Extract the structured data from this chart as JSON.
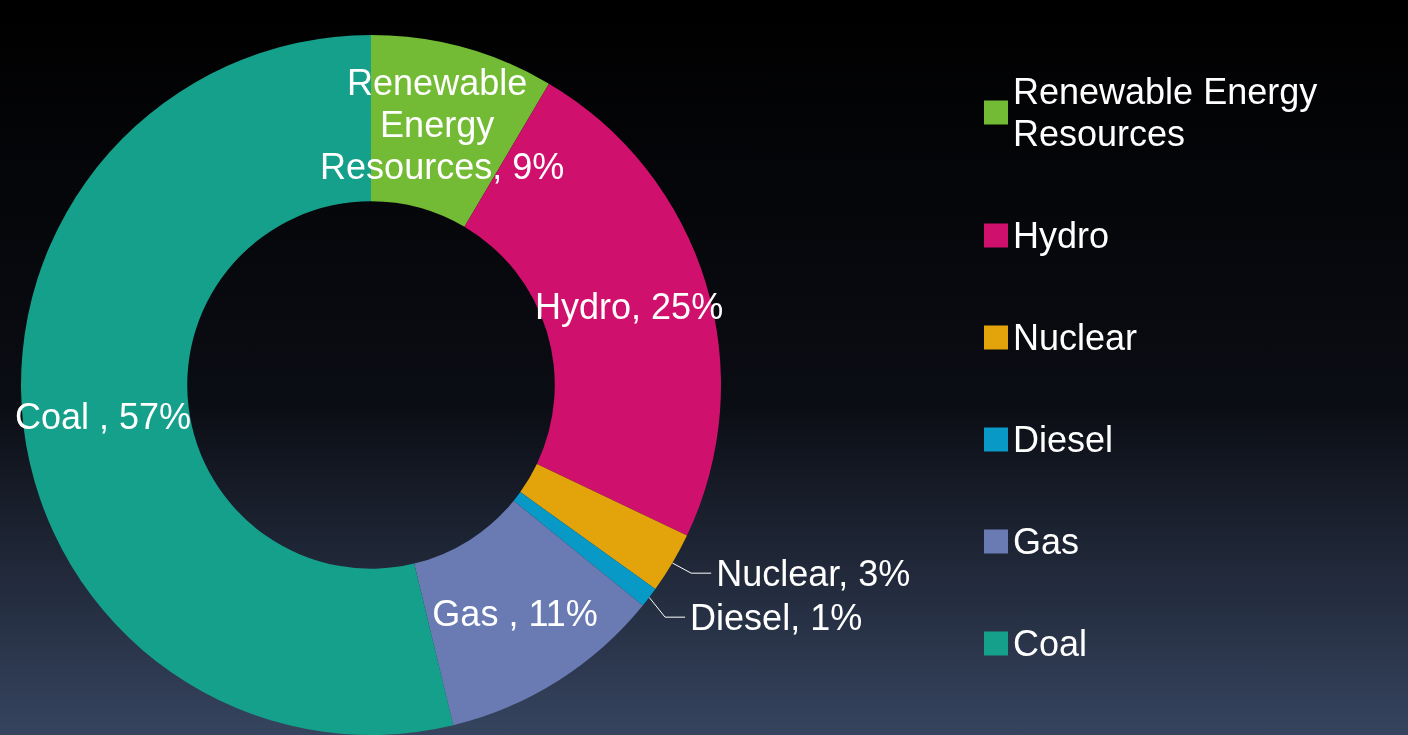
{
  "chart_data": {
    "type": "donut",
    "categories": [
      "Renewable Energy Resources",
      "Hydro",
      "Nuclear",
      "Diesel",
      "Gas",
      "Coal"
    ],
    "values": [
      9,
      25,
      3,
      1,
      11,
      57
    ],
    "colors": [
      "#74bb35",
      "#d0106d",
      "#e3a30a",
      "#0899c7",
      "#6a7bb4",
      "#15a08c"
    ],
    "value_labels": [
      "Renewable Energy Resources, 9%",
      "Hydro, 25%",
      "Nuclear, 3%",
      "Diesel, 1%",
      "Gas , 11%",
      "Coal , 57%"
    ],
    "legend": "right"
  }
}
